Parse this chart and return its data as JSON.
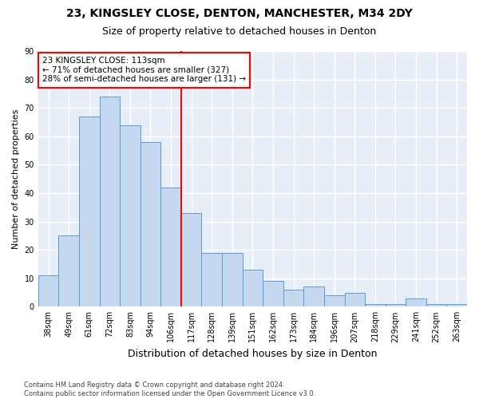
{
  "title1": "23, KINGSLEY CLOSE, DENTON, MANCHESTER, M34 2DY",
  "title2": "Size of property relative to detached houses in Denton",
  "xlabel": "Distribution of detached houses by size in Denton",
  "ylabel": "Number of detached properties",
  "categories": [
    "38sqm",
    "49sqm",
    "61sqm",
    "72sqm",
    "83sqm",
    "94sqm",
    "106sqm",
    "117sqm",
    "128sqm",
    "139sqm",
    "151sqm",
    "162sqm",
    "173sqm",
    "184sqm",
    "196sqm",
    "207sqm",
    "218sqm",
    "229sqm",
    "241sqm",
    "252sqm",
    "263sqm"
  ],
  "values": [
    11,
    25,
    67,
    74,
    64,
    58,
    42,
    33,
    19,
    19,
    13,
    9,
    6,
    7,
    4,
    5,
    1,
    1,
    3,
    1,
    1
  ],
  "bar_color": "#c5d8f0",
  "bar_edge_color": "#5b9bd5",
  "vline_color": "red",
  "vline_bin_index": 6,
  "annotation_text1": "23 KINGSLEY CLOSE: 113sqm",
  "annotation_text2": "← 71% of detached houses are smaller (327)",
  "annotation_text3": "28% of semi-detached houses are larger (131) →",
  "annotation_box_color": "white",
  "annotation_box_edgecolor": "red",
  "ylim": [
    0,
    90
  ],
  "yticks": [
    0,
    10,
    20,
    30,
    40,
    50,
    60,
    70,
    80,
    90
  ],
  "footer1": "Contains HM Land Registry data © Crown copyright and database right 2024.",
  "footer2": "Contains public sector information licensed under the Open Government Licence v3.0.",
  "fig_bg_color": "#ffffff",
  "plot_bg_color": "#e8eef7",
  "grid_color": "#ffffff",
  "title1_fontsize": 10,
  "title2_fontsize": 9,
  "xlabel_fontsize": 9,
  "ylabel_fontsize": 8,
  "tick_fontsize": 7,
  "annotation_fontsize": 7.5,
  "footer_fontsize": 6
}
